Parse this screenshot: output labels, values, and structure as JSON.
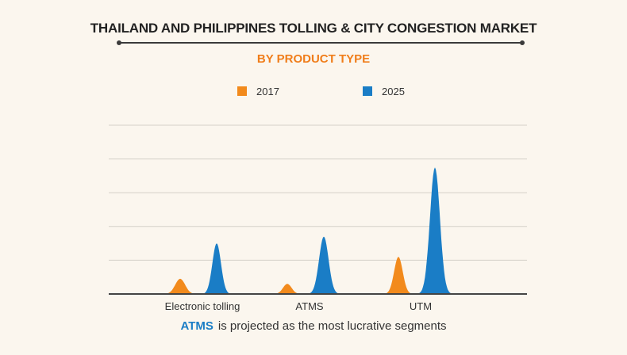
{
  "colors": {
    "series_2017": "#f28a1c",
    "series_2025": "#1a7dc6",
    "subtitle": "#f07d1a",
    "footer_highlight": "#1a7dc6",
    "grid": "#d4d0c8",
    "axis": "#444444"
  },
  "chart_data": {
    "type": "area",
    "title": "THAILAND AND PHILIPPINES TOLLING & CITY CONGESTION MARKET",
    "subtitle": "BY PRODUCT TYPE",
    "categories": [
      "Electronic tolling",
      "ATMS",
      "UTM"
    ],
    "series": [
      {
        "name": "2017",
        "values": [
          0.9,
          0.6,
          2.2
        ]
      },
      {
        "name": "2025",
        "values": [
          3.0,
          3.4,
          7.5
        ]
      }
    ],
    "ylim": [
      0,
      10
    ],
    "grid": true,
    "legend_position": "top-center",
    "xlabel": "",
    "ylabel": ""
  },
  "footer": {
    "highlight": "ATMS",
    "text": "is projected as the most lucrative segments"
  }
}
